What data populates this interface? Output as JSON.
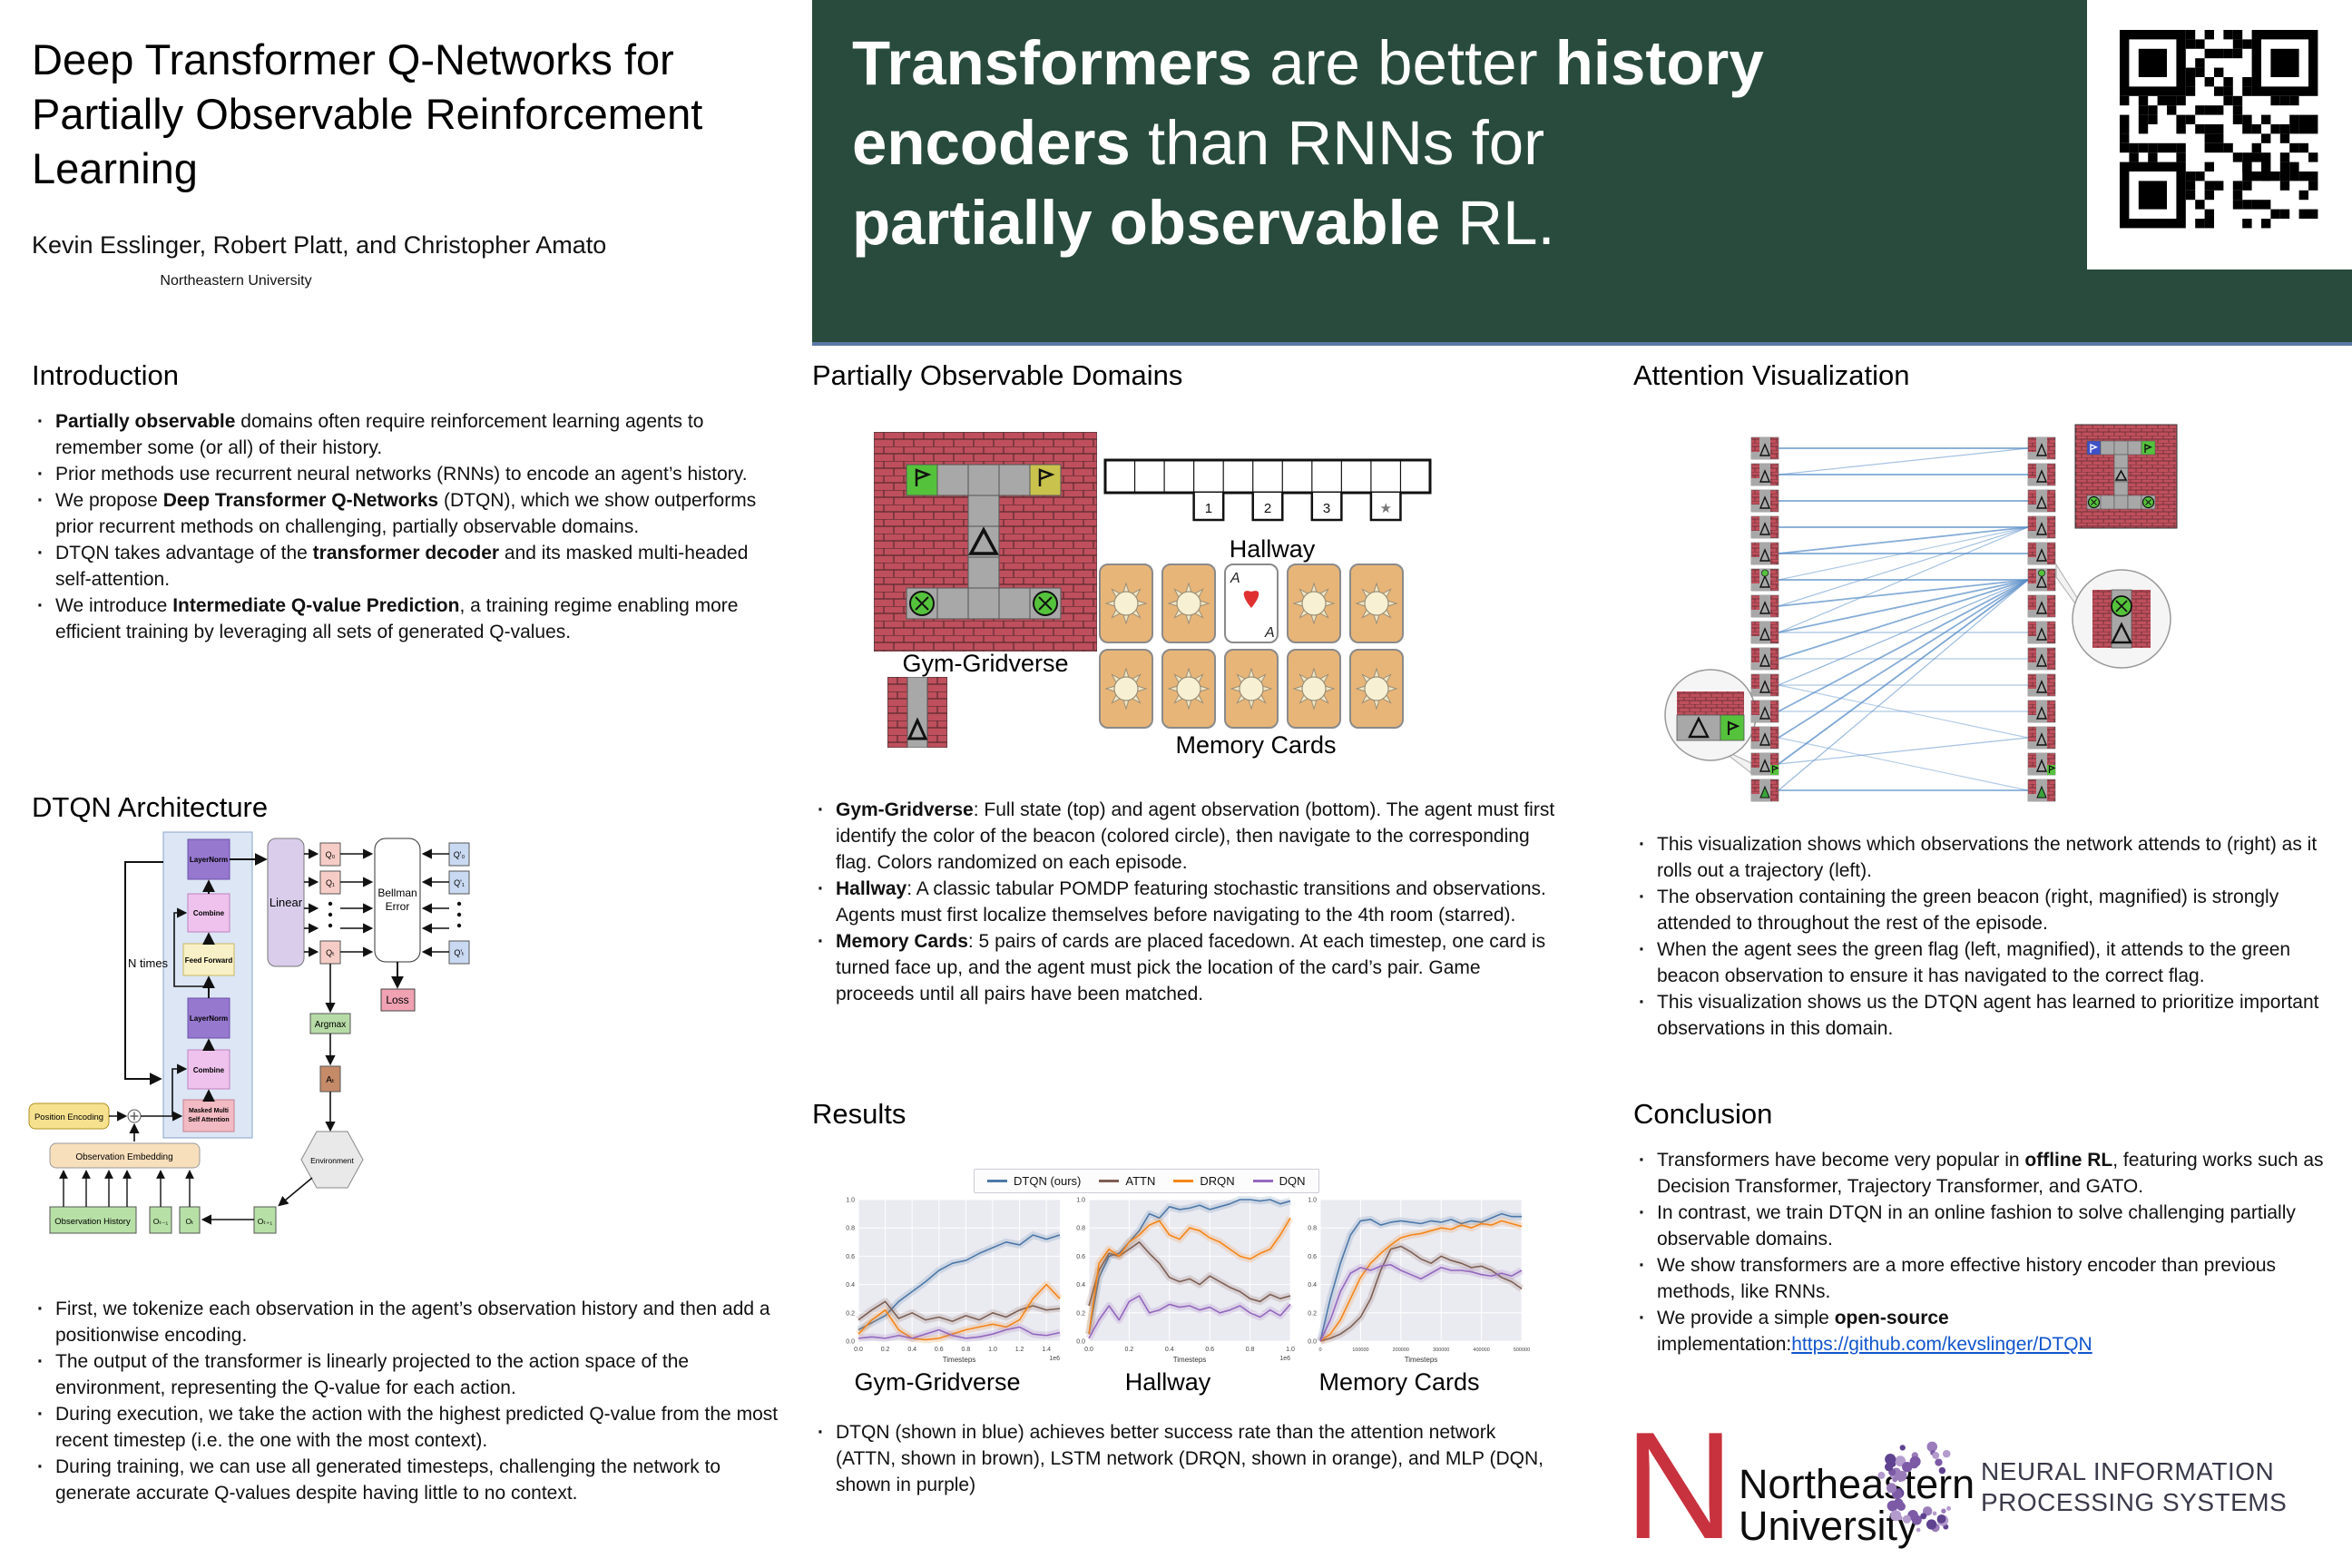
{
  "poster": {
    "title": "Deep Transformer Q-Networks for Partially Observable Reinforcement Learning",
    "authors": "Kevin Esslinger, Robert Platt, and Christopher Amato",
    "affiliation": "Northeastern University"
  },
  "banner": {
    "lines": [
      [
        {
          "t": "Transformers",
          "b": 1
        },
        {
          "t": " are better ",
          "b": 0
        },
        {
          "t": "history",
          "b": 1
        }
      ],
      [
        {
          "t": "encoders",
          "b": 1
        },
        {
          "t": " than RNNs for",
          "b": 0
        }
      ],
      [
        {
          "t": "partially observable",
          "b": 1
        },
        {
          "t": " RL.",
          "b": 0
        }
      ]
    ]
  },
  "sections": {
    "introduction": "Introduction",
    "architecture": "DTQN Architecture",
    "domains": "Partially Observable Domains",
    "results": "Results",
    "attention": "Attention Visualization",
    "conclusion": "Conclusion"
  },
  "introduction": {
    "bullets": [
      [
        {
          "t": "Partially observable",
          "b": 1
        },
        {
          "t": " domains often require reinforcement learning agents to remember some (or all) of their history.",
          "b": 0
        }
      ],
      [
        {
          "t": "Prior methods use recurrent neural networks (RNNs) to encode an agent’s history.",
          "b": 0
        }
      ],
      [
        {
          "t": "We propose ",
          "b": 0
        },
        {
          "t": "Deep Transformer Q-Networks",
          "b": 1
        },
        {
          "t": " (DTQN), which we show outperforms prior recurrent methods on challenging, partially observable domains.",
          "b": 0
        }
      ],
      [
        {
          "t": "DTQN takes advantage of the ",
          "b": 0
        },
        {
          "t": "transformer decoder",
          "b": 1
        },
        {
          "t": " and its masked multi-headed self-attention.",
          "b": 0
        }
      ],
      [
        {
          "t": "We introduce ",
          "b": 0
        },
        {
          "t": "Intermediate Q-value Prediction",
          "b": 1
        },
        {
          "t": ", a training regime enabling more efficient training by leveraging all sets of generated Q-values.",
          "b": 0
        }
      ]
    ]
  },
  "architecture": {
    "bullets": [
      [
        {
          "t": "First, we tokenize each observation in the agent’s observation history and then add a positionwise encoding.",
          "b": 0
        }
      ],
      [
        {
          "t": "The output of the transformer is linearly projected to the action space of the environment, representing the Q-value for each action.",
          "b": 0
        }
      ],
      [
        {
          "t": "During execution, we take the action with the highest predicted Q-value from the most recent timestep (i.e. the one with the most context).",
          "b": 0
        }
      ],
      [
        {
          "t": "During training, we can use all generated timesteps, challenging the network to generate accurate Q-values despite having little to no context.",
          "b": 0
        }
      ]
    ],
    "labels": {
      "layernorm1": "LayerNorm",
      "combine1": "Combine",
      "feedforward": "Feed Forward",
      "layernorm2": "LayerNorm",
      "combine2": "Combine",
      "masked1": "Masked Multi",
      "masked2": "Self Attention",
      "ntimes": "N times",
      "linear": "Linear",
      "bellman1": "Bellman",
      "bellman2": "Error",
      "q0": "Q₀",
      "q1": "Q₁",
      "qt": "Qₜ",
      "qp0": "Q'₀",
      "qp1": "Q'₁",
      "qpt": "Q'ₜ",
      "loss": "Loss",
      "argmax": "Argmax",
      "at": "Aₜ",
      "environment": "Environment",
      "pos_enc": "Position Encoding",
      "obs_emb": "Observation Embedding",
      "obs_hist": "Observation History",
      "ot1": "Oₜ₋₁",
      "ot": "Oₜ",
      "otp1": "Oₜ₊₁"
    }
  },
  "domains": {
    "bullets": [
      [
        {
          "t": "Gym-Gridverse",
          "b": 1
        },
        {
          "t": ": Full state (top) and agent observation (bottom). The agent must first identify the color of the beacon (colored circle), then navigate to the corresponding flag. Colors randomized on each episode.",
          "b": 0
        }
      ],
      [
        {
          "t": "Hallway",
          "b": 1
        },
        {
          "t": ": A classic tabular POMDP featuring stochastic transitions and observations. Agents must first localize themselves before navigating to the 4th room (starred).",
          "b": 0
        }
      ],
      [
        {
          "t": "Memory Cards",
          "b": 1
        },
        {
          "t": ": 5 pairs of cards are placed facedown. At each timestep, one card is turned face up, and the agent must pick the location of the card’s pair. Game proceeds until all pairs have been matched.",
          "b": 0
        }
      ]
    ],
    "gym_caption": "Gym-Gridverse",
    "hallway": {
      "caption": "Hallway",
      "cells": 11,
      "rooms": [
        {
          "pos": 3,
          "label": "1"
        },
        {
          "pos": 5,
          "label": "2"
        },
        {
          "pos": 7,
          "label": "3"
        },
        {
          "pos": 9,
          "label": "★"
        }
      ]
    },
    "memory_cards": {
      "caption": "Memory Cards",
      "rows": 2,
      "cols": 5,
      "face_up_row": 0,
      "face_up_col": 2,
      "ace_label": "A"
    }
  },
  "results": {
    "legend": [
      {
        "label": "DTQN (ours)",
        "color": "#4c78a8"
      },
      {
        "label": "ATTN",
        "color": "#7d5e52"
      },
      {
        "label": "DRQN",
        "color": "#f58518"
      },
      {
        "label": "DQN",
        "color": "#9467bd"
      }
    ],
    "bullets": [
      [
        {
          "t": "DTQN (shown in blue) achieves better success rate than the attention network (ATTN, shown in brown), LSTM network (DRQN, shown in orange), and MLP (DQN, shown in purple)",
          "b": 0
        }
      ]
    ]
  },
  "chart_data": [
    {
      "type": "line",
      "caption": "Gym-Gridverse",
      "xlabel": "Timesteps",
      "offset": "1e6",
      "xlim": [
        0,
        1.5
      ],
      "ylim": [
        0,
        1
      ],
      "xticks": [
        0,
        0.2,
        0.4,
        0.6,
        0.8,
        1.0,
        1.2,
        1.4
      ],
      "xtick_labels": [
        "0.0",
        "0.2",
        "0.4",
        "0.6",
        "0.8",
        "1.0",
        "1.2",
        "1.4"
      ],
      "yticks": [
        0,
        0.2,
        0.4,
        0.6,
        0.8,
        1.0
      ],
      "ytick_labels": [
        "0.0",
        "0.2",
        "0.4",
        "0.6",
        "0.8",
        "1.0"
      ],
      "x": [
        0,
        0.1,
        0.2,
        0.3,
        0.4,
        0.5,
        0.6,
        0.7,
        0.8,
        0.9,
        1.0,
        1.1,
        1.2,
        1.3,
        1.4,
        1.5
      ],
      "series": [
        {
          "name": "DTQN (ours)",
          "color": "#4c78a8",
          "y": [
            0.08,
            0.13,
            0.18,
            0.28,
            0.35,
            0.42,
            0.5,
            0.55,
            0.57,
            0.62,
            0.66,
            0.7,
            0.68,
            0.75,
            0.72,
            0.75
          ]
        },
        {
          "name": "ATTN",
          "color": "#7d5e52",
          "y": [
            0.15,
            0.22,
            0.28,
            0.16,
            0.2,
            0.15,
            0.17,
            0.14,
            0.18,
            0.15,
            0.2,
            0.17,
            0.22,
            0.25,
            0.22,
            0.23
          ]
        },
        {
          "name": "DRQN",
          "color": "#f58518",
          "y": [
            0.05,
            0.15,
            0.22,
            0.08,
            0.02,
            0.01,
            0.02,
            0.05,
            0.08,
            0.1,
            0.12,
            0.1,
            0.15,
            0.3,
            0.4,
            0.3
          ]
        },
        {
          "name": "DQN",
          "color": "#9467bd",
          "y": [
            0.02,
            0.03,
            0.02,
            0.04,
            0.02,
            0.05,
            0.08,
            0.04,
            0.02,
            0.03,
            0.05,
            0.08,
            0.1,
            0.05,
            0.04,
            0.06
          ]
        }
      ]
    },
    {
      "type": "line",
      "caption": "Hallway",
      "xlabel": "Timesteps",
      "offset": "1e6",
      "xlim": [
        0,
        1.0
      ],
      "ylim": [
        0,
        1
      ],
      "xticks": [
        0,
        0.2,
        0.4,
        0.6,
        0.8,
        1.0
      ],
      "xtick_labels": [
        "0.0",
        "0.2",
        "0.4",
        "0.6",
        "0.8",
        "1.0"
      ],
      "yticks": [
        0,
        0.2,
        0.4,
        0.6,
        0.8,
        1.0
      ],
      "ytick_labels": [
        "0.0",
        "0.2",
        "0.4",
        "0.6",
        "0.8",
        "1.0"
      ],
      "x": [
        0,
        0.05,
        0.1,
        0.15,
        0.2,
        0.25,
        0.3,
        0.35,
        0.4,
        0.45,
        0.5,
        0.55,
        0.6,
        0.65,
        0.7,
        0.75,
        0.8,
        0.85,
        0.9,
        0.95,
        1.0
      ],
      "series": [
        {
          "name": "DTQN (ours)",
          "color": "#4c78a8",
          "y": [
            0.05,
            0.45,
            0.6,
            0.62,
            0.7,
            0.78,
            0.9,
            0.87,
            0.95,
            0.93,
            0.94,
            0.96,
            0.93,
            0.95,
            0.97,
            1.0,
            1.0,
            0.99,
            1.0,
            0.97,
            0.99
          ]
        },
        {
          "name": "ATTN",
          "color": "#7d5e52",
          "y": [
            0.25,
            0.5,
            0.62,
            0.6,
            0.65,
            0.7,
            0.62,
            0.55,
            0.45,
            0.42,
            0.44,
            0.4,
            0.46,
            0.42,
            0.38,
            0.35,
            0.3,
            0.28,
            0.33,
            0.3,
            0.32
          ]
        },
        {
          "name": "DRQN",
          "color": "#f58518",
          "y": [
            0.05,
            0.55,
            0.65,
            0.6,
            0.7,
            0.75,
            0.82,
            0.85,
            0.75,
            0.72,
            0.8,
            0.78,
            0.73,
            0.7,
            0.65,
            0.6,
            0.58,
            0.62,
            0.65,
            0.75,
            0.87
          ]
        },
        {
          "name": "DQN",
          "color": "#9467bd",
          "y": [
            0.02,
            0.15,
            0.25,
            0.15,
            0.28,
            0.32,
            0.2,
            0.22,
            0.26,
            0.24,
            0.25,
            0.22,
            0.24,
            0.2,
            0.22,
            0.25,
            0.2,
            0.17,
            0.22,
            0.18,
            0.26
          ]
        }
      ]
    },
    {
      "type": "line",
      "caption": "Memory Cards",
      "xlabel": "Timesteps",
      "offset": "",
      "xlim": [
        0,
        500000
      ],
      "ylim": [
        0,
        1
      ],
      "xticks": [
        0,
        100000,
        200000,
        300000,
        400000,
        500000
      ],
      "xtick_labels": [
        "0",
        "100000",
        "200000",
        "300000",
        "400000",
        "500000"
      ],
      "yticks": [
        0,
        0.2,
        0.4,
        0.6,
        0.8,
        1.0
      ],
      "ytick_labels": [
        "0.0",
        "0.2",
        "0.4",
        "0.6",
        "0.8",
        "1.0"
      ],
      "x": [
        0,
        25000,
        50000,
        75000,
        100000,
        125000,
        150000,
        175000,
        200000,
        225000,
        250000,
        275000,
        300000,
        325000,
        350000,
        375000,
        400000,
        425000,
        450000,
        475000,
        500000
      ],
      "series": [
        {
          "name": "DTQN (ours)",
          "color": "#4c78a8",
          "y": [
            0,
            0.3,
            0.55,
            0.75,
            0.85,
            0.86,
            0.82,
            0.84,
            0.85,
            0.84,
            0.83,
            0.85,
            0.84,
            0.86,
            0.83,
            0.85,
            0.84,
            0.87,
            0.9,
            0.88,
            0.88
          ]
        },
        {
          "name": "ATTN",
          "color": "#7d5e52",
          "y": [
            0,
            0.02,
            0.05,
            0.1,
            0.17,
            0.3,
            0.5,
            0.65,
            0.67,
            0.63,
            0.58,
            0.55,
            0.6,
            0.57,
            0.55,
            0.52,
            0.53,
            0.5,
            0.45,
            0.42,
            0.37
          ]
        },
        {
          "name": "DRQN",
          "color": "#f58518",
          "y": [
            0,
            0.05,
            0.15,
            0.3,
            0.45,
            0.55,
            0.62,
            0.68,
            0.73,
            0.75,
            0.76,
            0.78,
            0.8,
            0.79,
            0.82,
            0.8,
            0.83,
            0.82,
            0.85,
            0.83,
            0.81
          ]
        },
        {
          "name": "DQN",
          "color": "#9467bd",
          "y": [
            0,
            0.15,
            0.35,
            0.48,
            0.52,
            0.5,
            0.53,
            0.54,
            0.5,
            0.47,
            0.44,
            0.48,
            0.52,
            0.5,
            0.5,
            0.49,
            0.47,
            0.46,
            0.48,
            0.46,
            0.5
          ]
        }
      ]
    }
  ],
  "attention": {
    "bullets": [
      [
        {
          "t": "This visualization shows which observations the network attends to (right) as it rolls out a trajectory (left).",
          "b": 0
        }
      ],
      [
        {
          "t": "The observation containing the green beacon (right, magnified) is strongly attended to throughout the rest of the episode.",
          "b": 0
        }
      ],
      [
        {
          "t": "When the agent sees the green flag (left, magnified), it attends to the green beacon observation to ensure it has navigated to the correct flag.",
          "b": 0
        }
      ],
      [
        {
          "t": "This visualization shows us the DTQN agent has learned to prioritize important observations in this domain.",
          "b": 0
        }
      ]
    ],
    "left_tiles": [
      "plain",
      "plain",
      "plain",
      "plain",
      "plain",
      "beacon",
      "plain",
      "plain",
      "plain",
      "plain",
      "plain",
      "plain",
      "flag",
      "gtri"
    ],
    "right_tiles": [
      "plain",
      "plain",
      "plain",
      "plain",
      "plain",
      "beacon",
      "plain",
      "plain",
      "plain",
      "plain",
      "plain",
      "plain",
      "flag",
      "gtri"
    ],
    "connections": [
      [
        0,
        0,
        0.9
      ],
      [
        1,
        0,
        0.5
      ],
      [
        1,
        1,
        0.9
      ],
      [
        2,
        2,
        0.9
      ],
      [
        3,
        3,
        0.9
      ],
      [
        4,
        3,
        0.8
      ],
      [
        4,
        4,
        0.9
      ],
      [
        5,
        5,
        0.9
      ],
      [
        5,
        3,
        0.4
      ],
      [
        6,
        5,
        0.8
      ],
      [
        6,
        3,
        0.5
      ],
      [
        7,
        5,
        0.8
      ],
      [
        7,
        3,
        0.5
      ],
      [
        7,
        7,
        0.5
      ],
      [
        8,
        5,
        0.8
      ],
      [
        8,
        8,
        0.4
      ],
      [
        9,
        5,
        0.7
      ],
      [
        9,
        9,
        0.4
      ],
      [
        9,
        11,
        0.35
      ],
      [
        10,
        5,
        0.8
      ],
      [
        10,
        10,
        0.4
      ],
      [
        11,
        5,
        0.8
      ],
      [
        11,
        13,
        0.35
      ],
      [
        12,
        5,
        0.9
      ],
      [
        12,
        11,
        0.5
      ],
      [
        13,
        5,
        0.6
      ],
      [
        13,
        13,
        0.8
      ]
    ]
  },
  "conclusion": {
    "bullets": [
      [
        {
          "t": "Transformers have become very popular in ",
          "b": 0
        },
        {
          "t": "offline RL",
          "b": 1
        },
        {
          "t": ", featuring works such as Decision Transformer, Trajectory Transformer, and GATO.",
          "b": 0
        }
      ],
      [
        {
          "t": "In contrast, we train DTQN in an online fashion to solve challenging partially observable domains.",
          "b": 0
        }
      ],
      [
        {
          "t": "We show transformers are a more effective history encoder than previous methods, like RNNs.",
          "b": 0
        }
      ],
      [
        {
          "t": "We provide a simple ",
          "b": 0
        },
        {
          "t": "open-source",
          "b": 1
        },
        {
          "t": " implementation:",
          "b": 0
        },
        {
          "t": "https://github.com/kevslinger/DTQN",
          "b": 0,
          "link": 1
        }
      ]
    ]
  },
  "logos": {
    "northeastern_n": "N",
    "northeastern_line1": "Northeastern",
    "northeastern_line2": "University",
    "neurips_line1": "NEURAL INFORMATION",
    "neurips_line2": "PROCESSING SYSTEMS",
    "neurips_purple": "#7c5aa6",
    "northeastern_red": "#c8323e"
  }
}
